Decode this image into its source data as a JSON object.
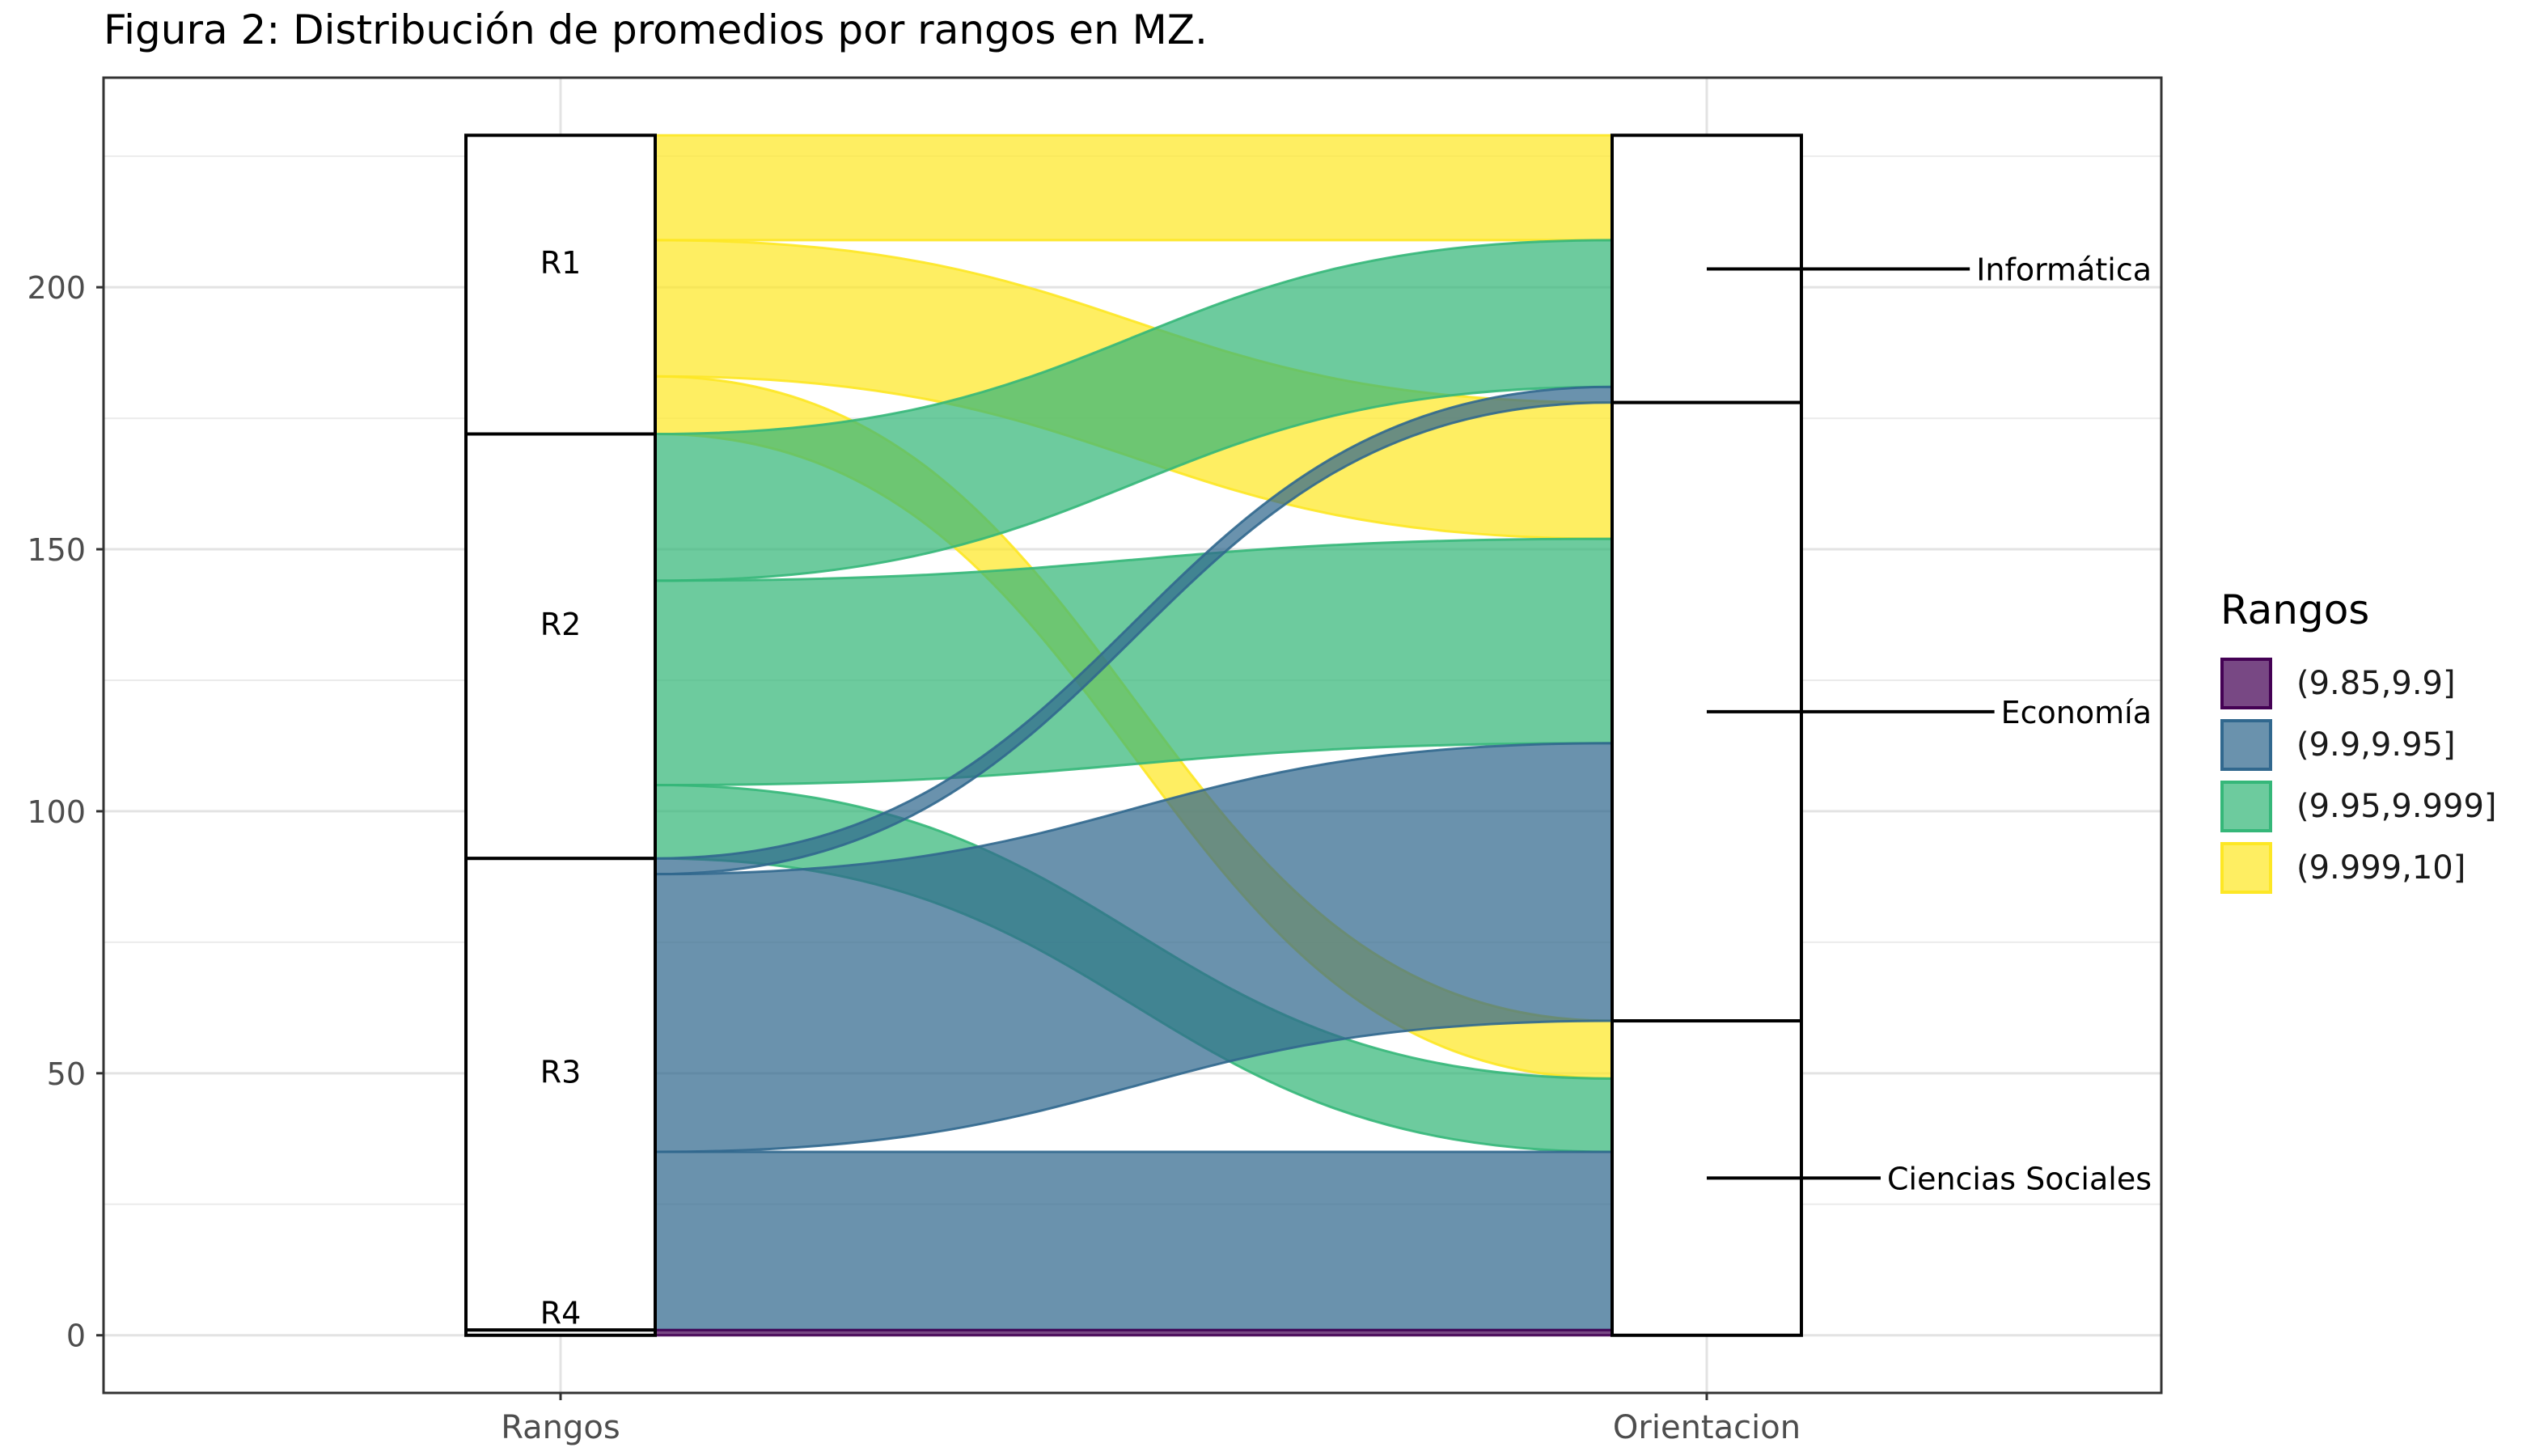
{
  "title": "Figura 2: Distribución de promedios por rangos en MZ.",
  "chart_data": {
    "type": "alluvial",
    "axes": [
      "Rangos",
      "Orientacion"
    ],
    "ylim": [
      -11,
      240
    ],
    "yticks": [
      0,
      50,
      100,
      150,
      200
    ],
    "grid": true,
    "rangos_strata": [
      {
        "label": "R1",
        "value": 57
      },
      {
        "label": "R2",
        "value": 81
      },
      {
        "label": "R3",
        "value": 90
      },
      {
        "label": "R4",
        "value": 1
      }
    ],
    "orientacion_strata": [
      {
        "label": "Informática",
        "value": 51
      },
      {
        "label": "Economía",
        "value": 118
      },
      {
        "label": "Ciencias Sociales",
        "value": 60
      }
    ],
    "flows": [
      {
        "from": "R1",
        "to": "Informática",
        "range": "(9.999,10]",
        "value": 20
      },
      {
        "from": "R1",
        "to": "Economía",
        "range": "(9.999,10]",
        "value": 26
      },
      {
        "from": "R1",
        "to": "Ciencias Sociales",
        "range": "(9.999,10]",
        "value": 11
      },
      {
        "from": "R2",
        "to": "Informática",
        "range": "(9.95,9.999]",
        "value": 28
      },
      {
        "from": "R2",
        "to": "Economía",
        "range": "(9.95,9.999]",
        "value": 39
      },
      {
        "from": "R2",
        "to": "Ciencias Sociales",
        "range": "(9.95,9.999]",
        "value": 14
      },
      {
        "from": "R3",
        "to": "Informática",
        "range": "(9.9,9.95]",
        "value": 3
      },
      {
        "from": "R3",
        "to": "Economía",
        "range": "(9.9,9.95]",
        "value": 53
      },
      {
        "from": "R3",
        "to": "Ciencias Sociales",
        "range": "(9.9,9.95]",
        "value": 34
      },
      {
        "from": "R4",
        "to": "Ciencias Sociales",
        "range": "(9.85,9.9]",
        "value": 1
      }
    ],
    "legend": {
      "title": "Rangos",
      "position": "right",
      "items": [
        {
          "label": "(9.85,9.9]",
          "color": "#440154"
        },
        {
          "label": "(9.9,9.95]",
          "color": "#31688E"
        },
        {
          "label": "(9.95,9.999]",
          "color": "#35B779"
        },
        {
          "label": "(9.999,10]",
          "color": "#FDE725"
        }
      ]
    }
  }
}
